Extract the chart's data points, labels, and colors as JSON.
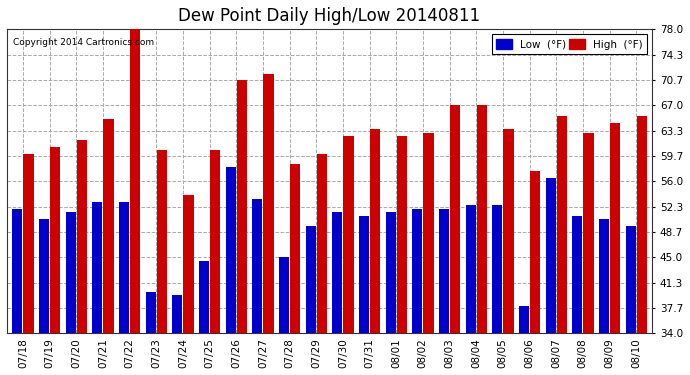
{
  "title": "Dew Point Daily High/Low 20140811",
  "copyright": "Copyright 2014 Cartronics.com",
  "dates": [
    "07/18",
    "07/19",
    "07/20",
    "07/21",
    "07/22",
    "07/23",
    "07/24",
    "07/25",
    "07/26",
    "07/27",
    "07/28",
    "07/29",
    "07/30",
    "07/31",
    "08/01",
    "08/02",
    "08/03",
    "08/04",
    "08/05",
    "08/06",
    "08/07",
    "08/08",
    "08/09",
    "08/10"
  ],
  "high_values": [
    60.0,
    61.0,
    62.0,
    65.0,
    78.0,
    60.5,
    54.0,
    60.5,
    70.7,
    71.5,
    58.5,
    60.0,
    62.5,
    63.5,
    62.5,
    63.0,
    67.0,
    67.0,
    63.5,
    57.5,
    65.5,
    63.0,
    64.5,
    65.5
  ],
  "low_values": [
    52.0,
    50.5,
    51.5,
    53.0,
    53.0,
    40.0,
    39.5,
    44.5,
    58.0,
    53.5,
    45.0,
    49.5,
    51.5,
    51.0,
    51.5,
    52.0,
    52.0,
    52.5,
    52.5,
    38.0,
    56.5,
    51.0,
    50.5,
    49.5
  ],
  "low_color": "#0000cc",
  "high_color": "#cc0000",
  "bg_color": "#ffffff",
  "plot_bg_color": "#ffffff",
  "grid_color": "#aaaaaa",
  "ylim_min": 34.0,
  "ylim_max": 78.0,
  "yticks": [
    34.0,
    37.7,
    41.3,
    45.0,
    48.7,
    52.3,
    56.0,
    59.7,
    63.3,
    67.0,
    70.7,
    74.3,
    78.0
  ]
}
